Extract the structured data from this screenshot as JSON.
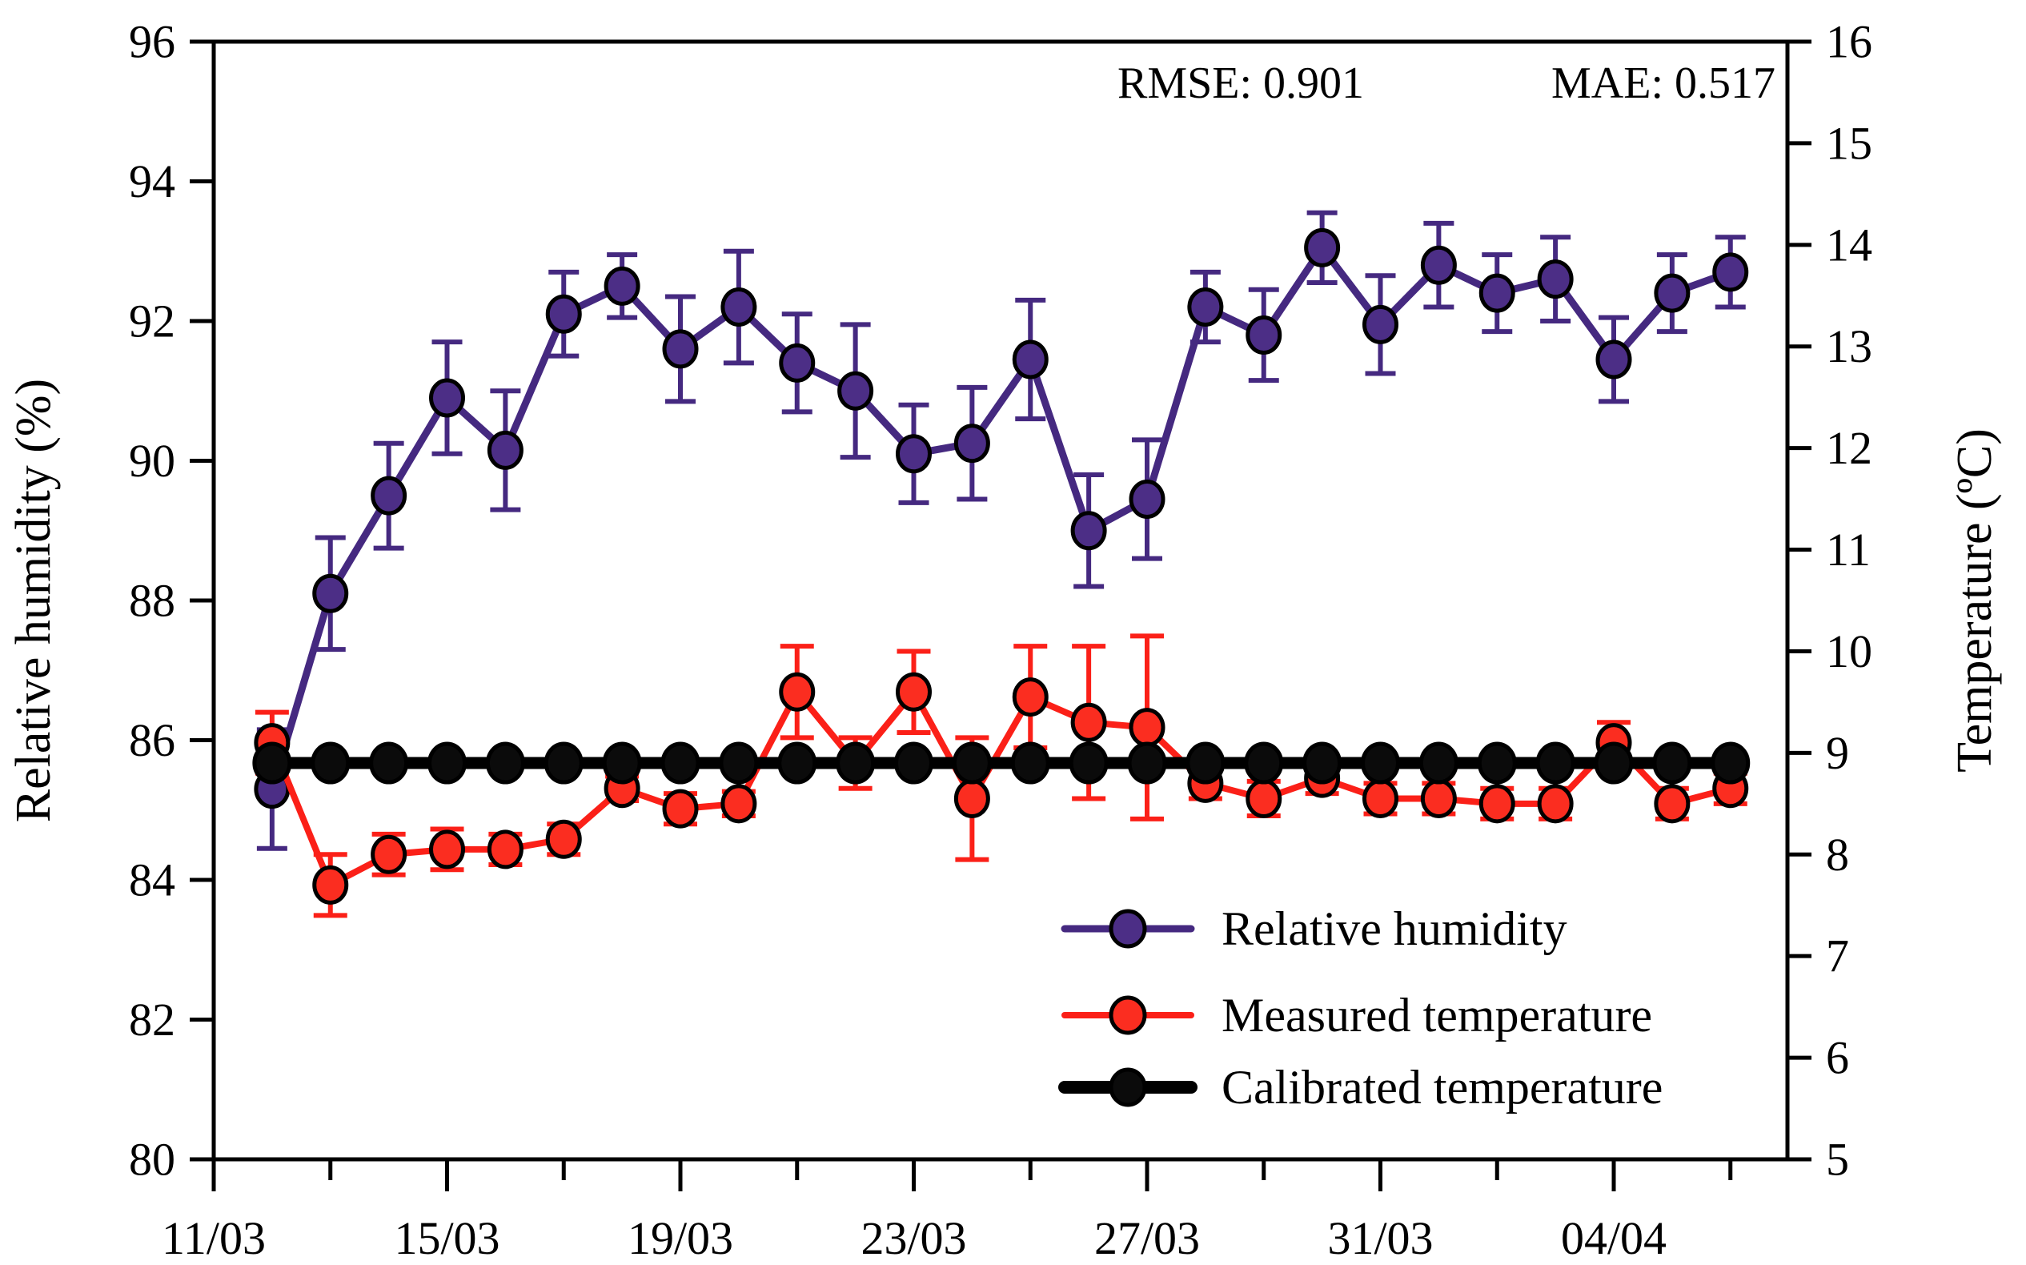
{
  "chart_data": {
    "type": "line",
    "title": "",
    "x_dates": [
      "12/03",
      "13/03",
      "14/03",
      "15/03",
      "16/03",
      "17/03",
      "18/03",
      "19/03",
      "20/03",
      "21/03",
      "22/03",
      "23/03",
      "24/03",
      "25/03",
      "26/03",
      "27/03",
      "28/03",
      "29/03",
      "30/03",
      "31/03",
      "01/04",
      "02/04",
      "03/04",
      "04/04",
      "05/04",
      "06/04"
    ],
    "series": [
      {
        "name": "Relative humidity",
        "axis": "left",
        "color": "#452980",
        "marker_fill": "#4C2E86",
        "values": [
          85.3,
          88.1,
          89.5,
          90.9,
          90.15,
          92.1,
          92.5,
          91.6,
          92.2,
          91.4,
          91.0,
          90.1,
          90.25,
          91.45,
          89.0,
          89.45,
          92.2,
          91.8,
          93.05,
          91.95,
          92.8,
          92.4,
          92.6,
          91.45,
          92.4,
          92.7
        ],
        "errors": [
          0.85,
          0.8,
          0.75,
          0.8,
          0.85,
          0.6,
          0.45,
          0.75,
          0.8,
          0.7,
          0.95,
          0.7,
          0.8,
          0.85,
          0.8,
          0.85,
          0.5,
          0.65,
          0.5,
          0.7,
          0.6,
          0.55,
          0.6,
          0.6,
          0.55,
          0.5
        ]
      },
      {
        "name": "Measured temperature",
        "axis": "right",
        "color": "#FB2018",
        "marker_fill": "#FB2D20",
        "values": [
          9.1,
          7.7,
          8.0,
          8.05,
          8.05,
          8.15,
          8.65,
          8.45,
          8.5,
          9.6,
          8.9,
          9.6,
          8.55,
          9.55,
          9.3,
          9.25,
          8.7,
          8.55,
          8.75,
          8.55,
          8.55,
          8.5,
          8.5,
          9.1,
          8.5,
          8.65
        ],
        "errors": [
          0.3,
          0.3,
          0.2,
          0.2,
          0.15,
          0.15,
          0.12,
          0.15,
          0.12,
          0.45,
          0.25,
          0.4,
          0.6,
          0.5,
          0.75,
          0.9,
          0.15,
          0.17,
          0.15,
          0.15,
          0.15,
          0.15,
          0.15,
          0.2,
          0.15,
          0.15
        ]
      },
      {
        "name": "Calibrated temperature",
        "axis": "right",
        "color": "#000000",
        "marker_fill": "#0b0b0b",
        "values": [
          8.9,
          8.9,
          8.9,
          8.9,
          8.9,
          8.9,
          8.9,
          8.9,
          8.9,
          8.9,
          8.9,
          8.9,
          8.9,
          8.9,
          8.9,
          8.9,
          8.9,
          8.9,
          8.9,
          8.9,
          8.9,
          8.9,
          8.9,
          8.9,
          8.9,
          8.9
        ],
        "errors": null
      }
    ],
    "left_axis": {
      "label": "Relative humidity (%)",
      "min": 80,
      "max": 96,
      "tick_step": 2,
      "tick_labels": [
        "80",
        "82",
        "84",
        "86",
        "88",
        "90",
        "92",
        "94",
        "96"
      ]
    },
    "right_axis": {
      "label": "Temperature (ºC)",
      "min": 5,
      "max": 16,
      "tick_step": 1,
      "tick_labels": [
        "5",
        "6",
        "7",
        "8",
        "9",
        "10",
        "11",
        "12",
        "13",
        "14",
        "15",
        "16"
      ]
    },
    "x_axis": {
      "major_tick_labels": [
        "11/03",
        "15/03",
        "19/03",
        "23/03",
        "27/03",
        "31/03",
        "04/04"
      ],
      "major_tick_days": [
        0,
        4,
        8,
        12,
        16,
        20,
        24
      ],
      "minor_tick_days": [
        2,
        6,
        10,
        14,
        18,
        22,
        26
      ],
      "days_span": 27
    },
    "annotations": [
      {
        "label": "RMSE: 0.901"
      },
      {
        "label": "MAE: 0.517"
      }
    ],
    "legend": {
      "position": "lower-right-inside",
      "entries": [
        {
          "label": "Relative humidity",
          "color": "#452980",
          "marker_fill": "#4C2E86",
          "line_width": 9
        },
        {
          "label": "Measured temperature",
          "color": "#FB2018",
          "marker_fill": "#FB2D20",
          "line_width": 8
        },
        {
          "label": "Calibrated temperature",
          "color": "#000000",
          "marker_fill": "#0b0b0b",
          "line_width": 16
        }
      ]
    },
    "grid": false,
    "frame_color": "#000000",
    "background": "#ffffff"
  }
}
